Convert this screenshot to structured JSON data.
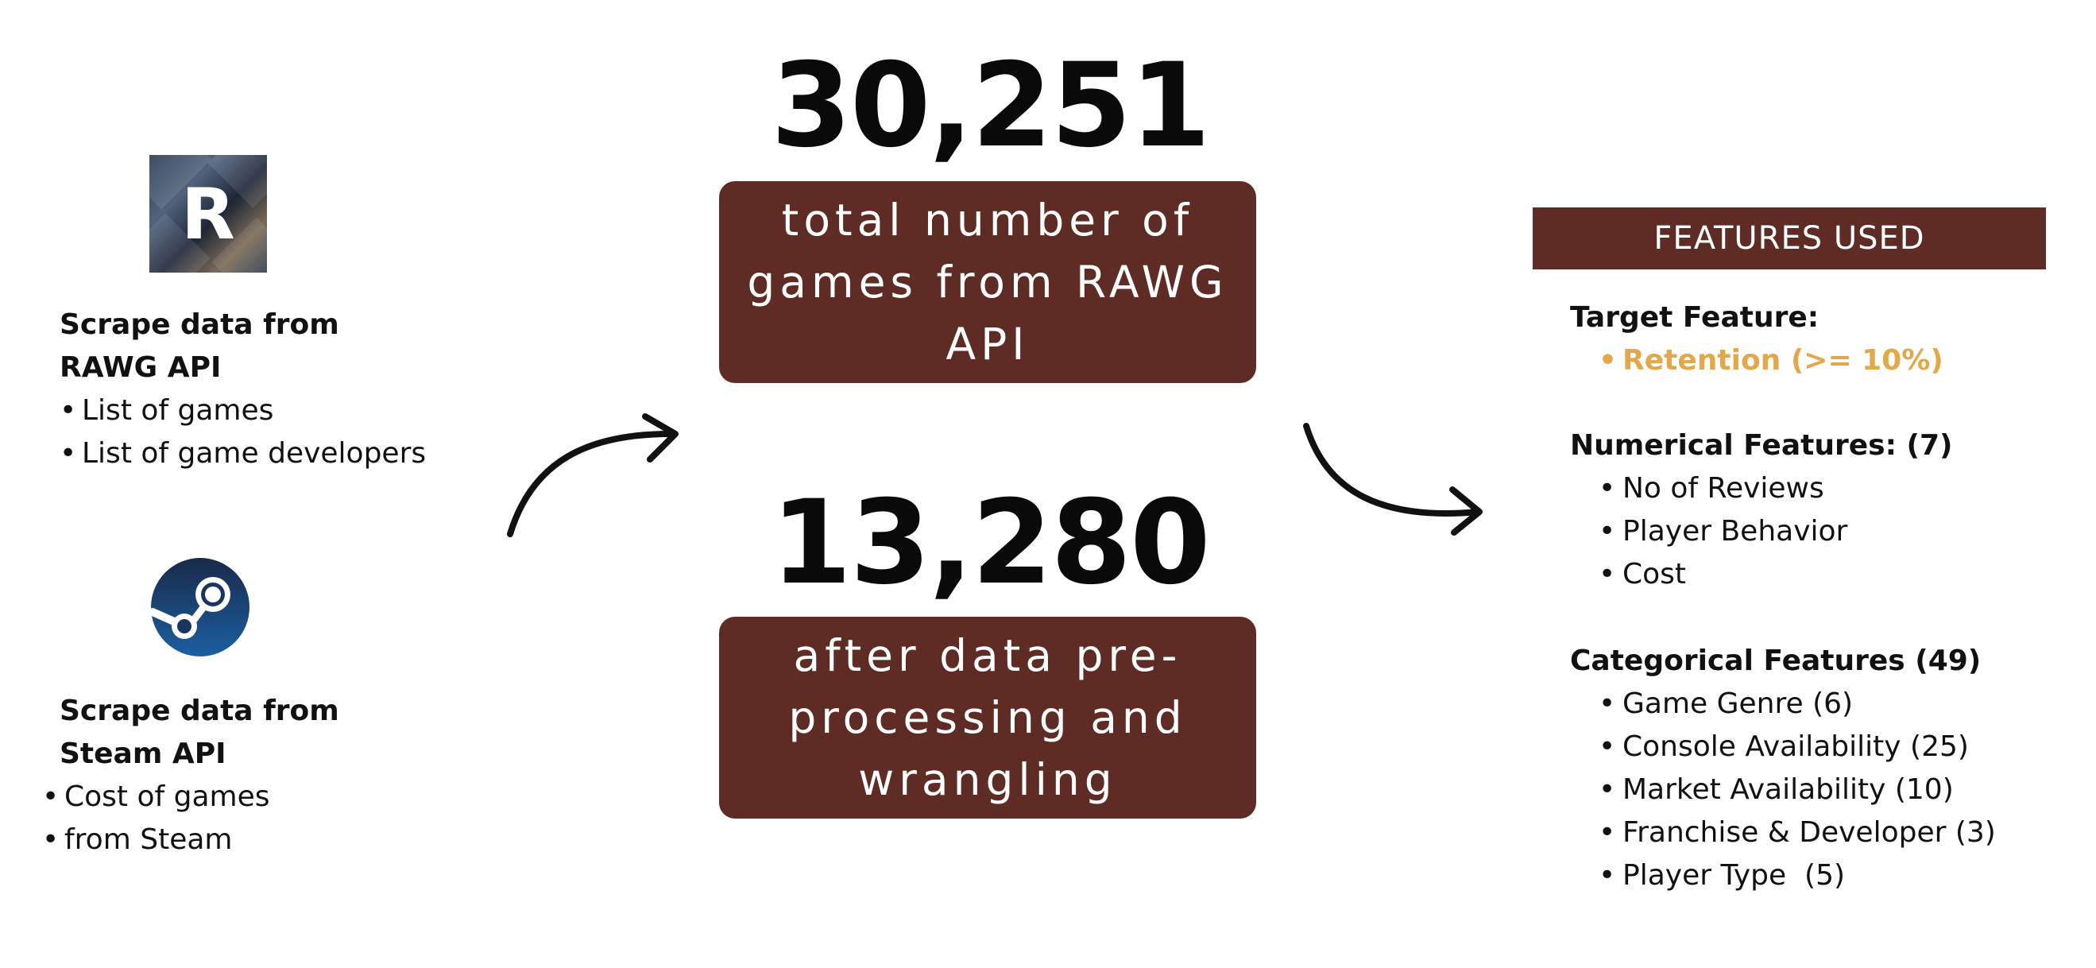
{
  "left": {
    "rawg": {
      "logo_letter": "R",
      "title_line1": "Scrape data from",
      "title_line2": "RAWG API",
      "items": [
        "List of games",
        "List of game developers"
      ]
    },
    "steam": {
      "title_line1": "Scrape data from",
      "title_line2": "Steam API",
      "items": [
        "Cost of games",
        "from Steam"
      ]
    }
  },
  "center": {
    "total": {
      "number": "30,251",
      "caption": [
        "total number of",
        "games from RAWG",
        "API"
      ]
    },
    "processed": {
      "number": "13,280",
      "caption": [
        "after data pre-",
        "processing and",
        "wrangling"
      ]
    }
  },
  "right": {
    "header": "FEATURES USED",
    "target": {
      "title": "Target Feature:",
      "items": [
        "Retention (>= 10%)"
      ]
    },
    "numerical": {
      "title": "Numerical Features: (7)",
      "items": [
        "No of Reviews",
        "Player Behavior",
        "Cost"
      ]
    },
    "categorical": {
      "title": "Categorical Features (49)",
      "items": [
        "Game Genre (6)",
        "Console Availability (25)",
        "Market Availability (10)",
        "Franchise & Developer (3)",
        "Player Type  (5)"
      ]
    }
  },
  "colors": {
    "box": "#5e2c25",
    "target_highlight": "#e3a84a",
    "text": "#111111"
  },
  "icons": {
    "rawg": "rawg-logo-icon",
    "steam": "steam-logo-icon",
    "arrow_left": "curved-arrow-icon",
    "arrow_right": "curved-arrow-icon"
  }
}
